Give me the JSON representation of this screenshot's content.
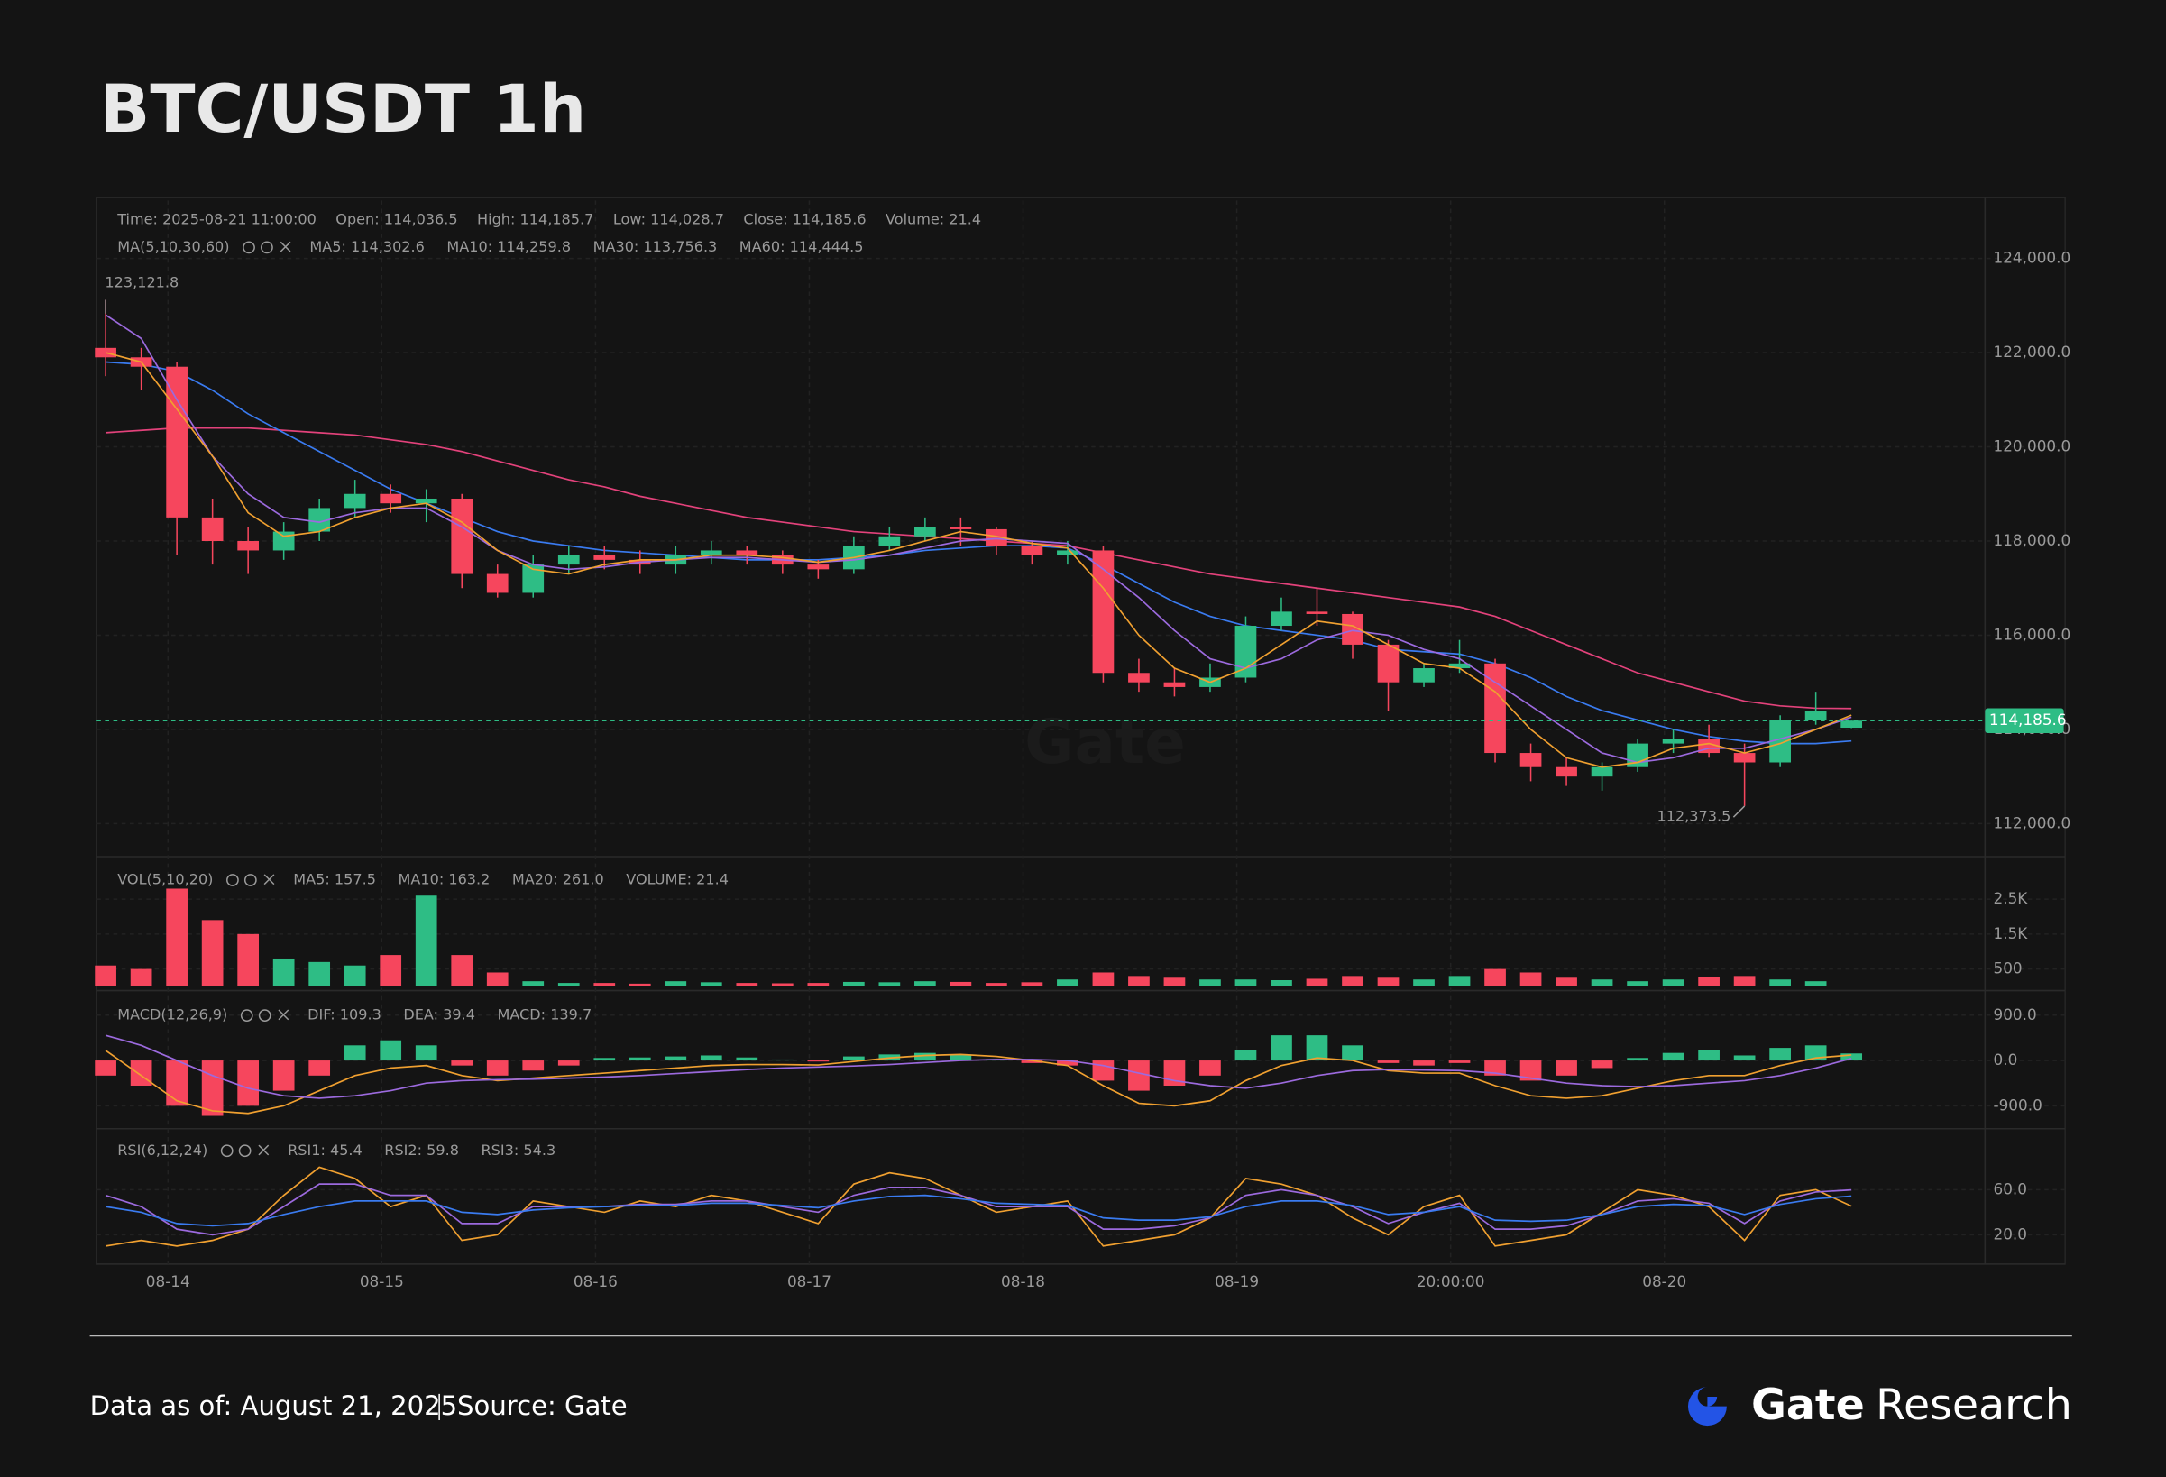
{
  "header": {
    "title": "BTC/USDT 1h"
  },
  "chart_data": {
    "type": "candlestick",
    "info_bar": [
      "Time: 2025-08-21 11:00:00",
      "Open: 114,036.5",
      "High: 114,185.7",
      "Low: 114,028.7",
      "Close: 114,185.6",
      "Volume: 21.4"
    ],
    "watermark": "Gate",
    "xlim": [
      -1,
      211
    ],
    "xticks": [
      {
        "value": 7,
        "label": "08-14"
      },
      {
        "value": 31,
        "label": "08-15"
      },
      {
        "value": 55,
        "label": "08-16"
      },
      {
        "value": 79,
        "label": "08-17"
      },
      {
        "value": 103,
        "label": "08-18"
      },
      {
        "value": 127,
        "label": "08-19"
      },
      {
        "value": 151,
        "label": "20:00:00"
      },
      {
        "value": 175,
        "label": "08-20"
      }
    ],
    "up_color": "#2ebd85",
    "down_color": "#f6465d",
    "x": [
      0,
      4,
      8,
      12,
      16,
      20,
      24,
      28,
      32,
      36,
      40,
      44,
      48,
      52,
      56,
      60,
      64,
      68,
      72,
      76,
      80,
      84,
      88,
      92,
      96,
      100,
      104,
      108,
      112,
      116,
      120,
      124,
      128,
      132,
      136,
      140,
      144,
      148,
      152,
      156,
      160,
      164,
      168,
      172,
      176,
      180,
      184,
      188,
      192,
      196
    ],
    "price": {
      "legend_title": "MA(5,10,30,60)",
      "ylim": [
        111300,
        125230
      ],
      "yticks": [
        {
          "value": 112000,
          "label": "112,000.0"
        },
        {
          "value": 114000,
          "label": "114,000.0"
        },
        {
          "value": 116000,
          "label": "116,000.0"
        },
        {
          "value": 118000,
          "label": "118,000.0"
        },
        {
          "value": 120000,
          "label": "120,000.0"
        },
        {
          "value": 122000,
          "label": "122,000.0"
        },
        {
          "value": 124000,
          "label": "124,000.0"
        }
      ],
      "open": [
        122100,
        121900,
        121700,
        118500,
        118000,
        117800,
        118200,
        118700,
        119000,
        118800,
        118900,
        117300,
        116900,
        117500,
        117700,
        117600,
        117500,
        117700,
        117800,
        117700,
        117500,
        117400,
        117900,
        118100,
        118300,
        118250,
        117900,
        117700,
        117800,
        115200,
        115000,
        114900,
        115100,
        116200,
        116500,
        116450,
        115800,
        115000,
        115300,
        115400,
        113500,
        113200,
        113000,
        113200,
        113700,
        113800,
        113500,
        113300,
        114200,
        114036.5
      ],
      "high": [
        123121.8,
        122100,
        121800,
        118900,
        118300,
        118400,
        118900,
        119300,
        119200,
        119100,
        119000,
        117500,
        117700,
        117900,
        117900,
        117800,
        117900,
        118000,
        117900,
        117800,
        117600,
        118100,
        118300,
        118500,
        118500,
        118300,
        118000,
        118000,
        117900,
        115500,
        115300,
        115400,
        116400,
        116800,
        117000,
        116500,
        115900,
        115400,
        115900,
        115500,
        113700,
        113400,
        113300,
        113800,
        114000,
        114100,
        113700,
        114300,
        114800,
        114185.7
      ],
      "low": [
        121500,
        121200,
        117700,
        117500,
        117300,
        117600,
        118000,
        118500,
        118600,
        118400,
        117000,
        116800,
        116800,
        117300,
        117400,
        117300,
        117300,
        117500,
        117500,
        117300,
        117200,
        117300,
        117800,
        118000,
        117900,
        117700,
        117500,
        117500,
        115000,
        114800,
        114700,
        114800,
        115000,
        116100,
        116200,
        115500,
        114400,
        114900,
        115200,
        113300,
        112900,
        112800,
        112700,
        113100,
        113500,
        113400,
        112373.5,
        113200,
        114100,
        114028.7
      ],
      "close": [
        121900,
        121700,
        118500,
        118000,
        117800,
        118200,
        118700,
        119000,
        118800,
        118900,
        117300,
        116900,
        117500,
        117700,
        117600,
        117500,
        117700,
        117800,
        117700,
        117500,
        117400,
        117900,
        118100,
        118300,
        118250,
        117900,
        117700,
        117800,
        115200,
        115000,
        114900,
        115100,
        116200,
        116500,
        116450,
        115800,
        115000,
        115300,
        115400,
        113500,
        113200,
        113000,
        113200,
        113700,
        113800,
        113500,
        113300,
        114200,
        114400,
        114185.6
      ],
      "series": [
        {
          "name": "MA5: 114,302.6",
          "color": "#f0a030",
          "values": [
            122000,
            121800,
            120800,
            119800,
            118600,
            118100,
            118200,
            118500,
            118700,
            118800,
            118400,
            117800,
            117400,
            117300,
            117500,
            117600,
            117600,
            117700,
            117700,
            117650,
            117550,
            117650,
            117800,
            118000,
            118200,
            118100,
            117950,
            117850,
            117000,
            116000,
            115300,
            115000,
            115300,
            115800,
            116300,
            116200,
            115800,
            115400,
            115300,
            114800,
            114000,
            113400,
            113200,
            113300,
            113600,
            113700,
            113500,
            113700,
            114000,
            114302.6
          ]
        },
        {
          "name": "MA10: 114,259.8",
          "color": "#9c6ade",
          "values": [
            122800,
            122300,
            121000,
            119800,
            119000,
            118500,
            118400,
            118600,
            118700,
            118700,
            118300,
            117800,
            117500,
            117400,
            117450,
            117550,
            117600,
            117650,
            117650,
            117600,
            117550,
            117600,
            117700,
            117850,
            118000,
            118050,
            118000,
            117950,
            117400,
            116800,
            116100,
            115500,
            115300,
            115500,
            115900,
            116100,
            116000,
            115700,
            115500,
            115000,
            114500,
            114000,
            113500,
            113300,
            113400,
            113600,
            113600,
            113800,
            114000,
            114259.8
          ]
        },
        {
          "name": "MA30: 113,756.3",
          "color": "#3a7bf0",
          "values": [
            121800,
            121750,
            121600,
            121200,
            120700,
            120300,
            119900,
            119500,
            119100,
            118800,
            118500,
            118200,
            118000,
            117900,
            117800,
            117750,
            117700,
            117650,
            117600,
            117600,
            117600,
            117650,
            117700,
            117800,
            117850,
            117900,
            117900,
            117850,
            117500,
            117100,
            116700,
            116400,
            116200,
            116100,
            116000,
            115900,
            115700,
            115650,
            115600,
            115400,
            115100,
            114700,
            114400,
            114200,
            114000,
            113850,
            113750,
            113700,
            113700,
            113756.3
          ]
        },
        {
          "name": "MA60: 114,444.5",
          "color": "#e3427b",
          "values": [
            120300,
            120350,
            120400,
            120400,
            120400,
            120350,
            120300,
            120250,
            120150,
            120050,
            119900,
            119700,
            119500,
            119300,
            119150,
            118950,
            118800,
            118650,
            118500,
            118400,
            118300,
            118200,
            118150,
            118100,
            118050,
            118000,
            117950,
            117900,
            117750,
            117600,
            117450,
            117300,
            117200,
            117100,
            117000,
            116900,
            116800,
            116700,
            116600,
            116400,
            116100,
            115800,
            115500,
            115200,
            115000,
            114800,
            114600,
            114500,
            114450,
            114444.5
          ]
        }
      ],
      "max_marker": {
        "value": 123121.8,
        "label": "123,121.8"
      },
      "min_marker": {
        "value": 112373.5,
        "label": "112,373.5"
      },
      "price_line": {
        "value": 114185.6,
        "label": "114,185.6",
        "color": "#2ebd85"
      }
    },
    "volume": {
      "legend_title": "VOL(5,10,20)",
      "legend": [
        {
          "text": "MA5: 157.5",
          "color": "#f0a030"
        },
        {
          "text": "MA10: 163.2",
          "color": "#9c6ade"
        },
        {
          "text": "MA20: 261.0",
          "color": "#3a7bf0"
        },
        {
          "text": "VOLUME: 21.4",
          "color": "#2ebd85"
        }
      ],
      "ylim": [
        0,
        3400
      ],
      "yticks": [
        500,
        {
          "value": 1500,
          "label": "1.5K"
        },
        {
          "value": 2500,
          "label": "2.5K"
        }
      ],
      "values": [
        600,
        500,
        2800,
        1900,
        1500,
        800,
        700,
        600,
        900,
        2600,
        900,
        400,
        150,
        100,
        100,
        80,
        150,
        120,
        100,
        90,
        100,
        130,
        120,
        150,
        130,
        100,
        120,
        200,
        400,
        300,
        250,
        200,
        200,
        180,
        220,
        300,
        250,
        200,
        300,
        500,
        400,
        250,
        200,
        150,
        200,
        280,
        300,
        200,
        150,
        21.4
      ]
    },
    "macd": {
      "legend_title": "MACD(12,26,9)",
      "ylim": [
        -1300,
        1250
      ],
      "yticks": [
        {
          "value": -900,
          "label": "-900.0"
        },
        {
          "value": 0,
          "label": "0.0"
        },
        {
          "value": 900,
          "label": "900.0"
        }
      ],
      "hist": {
        "name": "MACD: 139.7",
        "color": "#2ebd85",
        "values": [
          -300,
          -500,
          -900,
          -1100,
          -900,
          -600,
          -300,
          300,
          400,
          300,
          -100,
          -300,
          -200,
          -100,
          50,
          60,
          80,
          100,
          60,
          20,
          -20,
          80,
          120,
          150,
          120,
          30,
          -50,
          -100,
          -400,
          -600,
          -500,
          -300,
          200,
          500,
          500,
          300,
          -50,
          -100,
          -50,
          -300,
          -400,
          -300,
          -150,
          50,
          150,
          200,
          100,
          250,
          300,
          139.7
        ]
      },
      "series": [
        {
          "name": "DIF: 109.3",
          "color": "#f0a030",
          "values": [
            200,
            -300,
            -800,
            -1000,
            -1050,
            -900,
            -600,
            -300,
            -150,
            -100,
            -300,
            -400,
            -350,
            -300,
            -250,
            -200,
            -150,
            -100,
            -80,
            -80,
            -90,
            -20,
            50,
            100,
            120,
            80,
            0,
            -100,
            -500,
            -850,
            -900,
            -800,
            -400,
            -100,
            50,
            0,
            -200,
            -250,
            -250,
            -500,
            -700,
            -750,
            -700,
            -550,
            -400,
            -300,
            -300,
            -100,
            50,
            109.3
          ]
        },
        {
          "name": "DEA: 39.4",
          "color": "#9c6ade",
          "values": [
            500,
            300,
            0,
            -300,
            -550,
            -700,
            -750,
            -700,
            -600,
            -450,
            -400,
            -380,
            -370,
            -350,
            -330,
            -300,
            -260,
            -220,
            -180,
            -150,
            -130,
            -110,
            -80,
            -40,
            0,
            20,
            20,
            0,
            -100,
            -250,
            -400,
            -500,
            -550,
            -450,
            -300,
            -200,
            -180,
            -190,
            -200,
            -250,
            -350,
            -450,
            -500,
            -520,
            -500,
            -450,
            -400,
            -300,
            -150,
            39.4
          ]
        }
      ]
    },
    "rsi": {
      "legend_title": "RSI(6,12,24)",
      "ylim": [
        -6,
        108
      ],
      "yticks": [
        {
          "value": 20,
          "label": "20.0"
        },
        {
          "value": 60,
          "label": "60.0"
        }
      ],
      "series": [
        {
          "name": "RSI1: 45.4",
          "color": "#f0a030",
          "values": [
            10,
            15,
            10,
            15,
            25,
            55,
            80,
            70,
            45,
            55,
            15,
            20,
            50,
            45,
            40,
            50,
            45,
            55,
            50,
            40,
            30,
            65,
            75,
            70,
            55,
            40,
            45,
            50,
            10,
            15,
            20,
            35,
            70,
            65,
            55,
            35,
            20,
            45,
            55,
            10,
            15,
            20,
            40,
            60,
            55,
            45,
            15,
            55,
            60,
            45.4
          ]
        },
        {
          "name": "RSI2: 59.8",
          "color": "#9c6ade",
          "values": [
            55,
            45,
            25,
            20,
            25,
            45,
            65,
            65,
            55,
            55,
            30,
            30,
            45,
            45,
            45,
            47,
            47,
            50,
            50,
            45,
            40,
            55,
            62,
            62,
            55,
            45,
            45,
            45,
            25,
            25,
            28,
            35,
            55,
            60,
            55,
            45,
            30,
            40,
            48,
            25,
            25,
            28,
            38,
            50,
            52,
            48,
            30,
            50,
            58,
            59.8
          ]
        },
        {
          "name": "RSI3: 54.3",
          "color": "#3a7bf0",
          "values": [
            45,
            40,
            30,
            28,
            30,
            38,
            45,
            50,
            50,
            50,
            40,
            38,
            42,
            44,
            45,
            46,
            46,
            48,
            48,
            46,
            44,
            50,
            54,
            55,
            52,
            48,
            47,
            46,
            35,
            33,
            33,
            36,
            45,
            50,
            50,
            46,
            38,
            40,
            45,
            33,
            32,
            33,
            38,
            45,
            47,
            46,
            38,
            47,
            52,
            54.3
          ]
        }
      ]
    }
  },
  "footer": {
    "note": "Data as of: August 21, 2025",
    "source": "Source: Gate",
    "brand": "Gate",
    "brand_sub": "Research"
  }
}
